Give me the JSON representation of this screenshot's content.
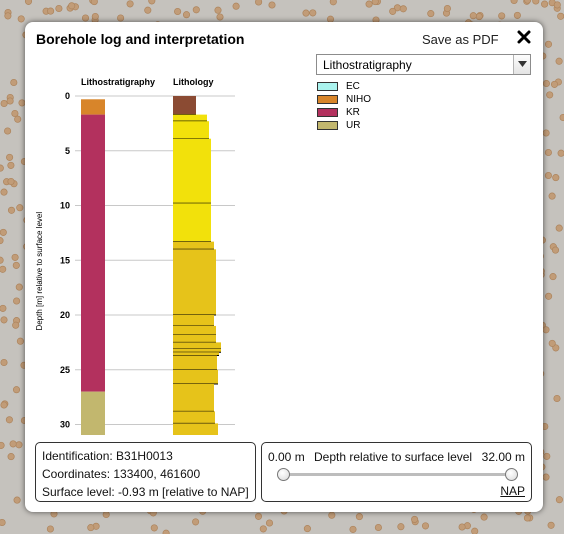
{
  "dialog": {
    "title": "Borehole log and interpretation",
    "save_pdf_label": "Save as PDF"
  },
  "chart_data": {
    "type": "borehole-log",
    "ylabel": "Depth [m] relative to surface level",
    "ylim": [
      0,
      32
    ],
    "yticks": [
      "0",
      "5",
      "10",
      "15",
      "20",
      "25",
      "30"
    ],
    "columns": [
      "Lithostratigraphy",
      "Lithology"
    ],
    "lithostratigraphy": [
      {
        "unit": "NIHO",
        "top": 0.3,
        "bottom": 1.7,
        "color": "#d8852a"
      },
      {
        "unit": "KR",
        "top": 1.7,
        "bottom": 27.0,
        "color": "#b3315e"
      },
      {
        "unit": "UR",
        "top": 27.0,
        "bottom": 32.0,
        "color": "#c2b76e"
      }
    ],
    "lithology": [
      {
        "top": 0.0,
        "bottom": 1.7,
        "color": "#8b4b33"
      },
      {
        "top": 1.7,
        "bottom": 2.3,
        "color": "#f2e10b"
      },
      {
        "top": 2.3,
        "bottom": 3.9,
        "color": "#f2e10b"
      },
      {
        "top": 3.9,
        "bottom": 9.8,
        "color": "#f2e10b"
      },
      {
        "top": 9.8,
        "bottom": 13.3,
        "color": "#f2e10b"
      },
      {
        "top": 13.3,
        "bottom": 14.0,
        "color": "#e6c31a"
      },
      {
        "top": 14.0,
        "bottom": 20.0,
        "color": "#e6c31a"
      },
      {
        "top": 20.0,
        "bottom": 21.0,
        "color": "#e6c31a"
      },
      {
        "top": 21.0,
        "bottom": 21.8,
        "color": "#e6c31a"
      },
      {
        "top": 21.8,
        "bottom": 22.5,
        "color": "#e6c31a"
      },
      {
        "top": 22.5,
        "bottom": 23.1,
        "color": "#e6c31a"
      },
      {
        "top": 23.1,
        "bottom": 23.4,
        "color": "#e6c31a"
      },
      {
        "top": 23.4,
        "bottom": 23.7,
        "color": "#e6c31a"
      },
      {
        "top": 23.7,
        "bottom": 25.0,
        "color": "#e6c31a"
      },
      {
        "top": 25.0,
        "bottom": 26.3,
        "color": "#e6c31a"
      },
      {
        "top": 26.3,
        "bottom": 28.8,
        "color": "#e6c31a"
      },
      {
        "top": 28.8,
        "bottom": 29.9,
        "color": "#e6c31a"
      },
      {
        "top": 29.9,
        "bottom": 31.0,
        "color": "#e6c31a"
      },
      {
        "top": 31.0,
        "bottom": 32.0,
        "color": "#e6c31a"
      }
    ]
  },
  "dropdown": {
    "selected": "Lithostratigraphy"
  },
  "legend": [
    {
      "label": "EC",
      "color": "#aaf3ee"
    },
    {
      "label": "NIHO",
      "color": "#d8852a"
    },
    {
      "label": "KR",
      "color": "#b3315e"
    },
    {
      "label": "UR",
      "color": "#c2b76e"
    }
  ],
  "info": {
    "identification": "Identification: B31H0013",
    "coordinates": "Coordinates: 133400, 461600",
    "surface_level": "Surface level: -0.93 m [relative to NAP]"
  },
  "depth_range": {
    "min_label": "0.00 m",
    "label": "Depth relative to surface level",
    "max_label": "32.00 m",
    "min_value": 0,
    "max_value": 32,
    "nap_link": "NAP"
  }
}
